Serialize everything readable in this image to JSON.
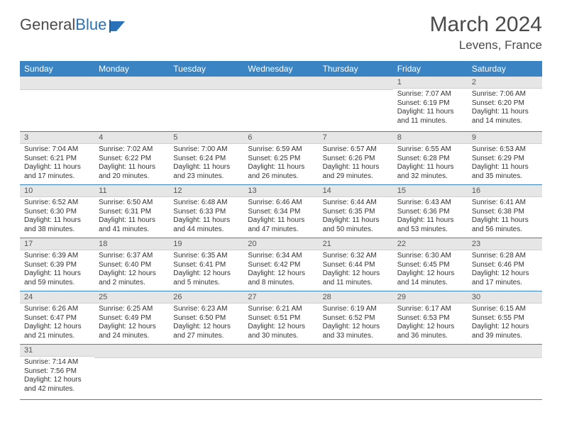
{
  "logo": {
    "part1": "General",
    "part2": "Blue"
  },
  "title": {
    "month": "March 2024",
    "location": "Levens, France"
  },
  "colors": {
    "header_bg": "#3b84c4",
    "header_text": "#ffffff",
    "daynum_bg": "#e6e6e6",
    "row_border": "#3b84c4",
    "text": "#333333",
    "logo_blue": "#2971b8"
  },
  "typography": {
    "title_fontsize": 30,
    "location_fontsize": 17,
    "header_fontsize": 12,
    "cell_fontsize": 10
  },
  "weekdays": [
    "Sunday",
    "Monday",
    "Tuesday",
    "Wednesday",
    "Thursday",
    "Friday",
    "Saturday"
  ],
  "weeks": [
    [
      null,
      null,
      null,
      null,
      null,
      {
        "n": "1",
        "sunrise": "Sunrise: 7:07 AM",
        "sunset": "Sunset: 6:19 PM",
        "daylight": "Daylight: 11 hours and 11 minutes."
      },
      {
        "n": "2",
        "sunrise": "Sunrise: 7:06 AM",
        "sunset": "Sunset: 6:20 PM",
        "daylight": "Daylight: 11 hours and 14 minutes."
      }
    ],
    [
      {
        "n": "3",
        "sunrise": "Sunrise: 7:04 AM",
        "sunset": "Sunset: 6:21 PM",
        "daylight": "Daylight: 11 hours and 17 minutes."
      },
      {
        "n": "4",
        "sunrise": "Sunrise: 7:02 AM",
        "sunset": "Sunset: 6:22 PM",
        "daylight": "Daylight: 11 hours and 20 minutes."
      },
      {
        "n": "5",
        "sunrise": "Sunrise: 7:00 AM",
        "sunset": "Sunset: 6:24 PM",
        "daylight": "Daylight: 11 hours and 23 minutes."
      },
      {
        "n": "6",
        "sunrise": "Sunrise: 6:59 AM",
        "sunset": "Sunset: 6:25 PM",
        "daylight": "Daylight: 11 hours and 26 minutes."
      },
      {
        "n": "7",
        "sunrise": "Sunrise: 6:57 AM",
        "sunset": "Sunset: 6:26 PM",
        "daylight": "Daylight: 11 hours and 29 minutes."
      },
      {
        "n": "8",
        "sunrise": "Sunrise: 6:55 AM",
        "sunset": "Sunset: 6:28 PM",
        "daylight": "Daylight: 11 hours and 32 minutes."
      },
      {
        "n": "9",
        "sunrise": "Sunrise: 6:53 AM",
        "sunset": "Sunset: 6:29 PM",
        "daylight": "Daylight: 11 hours and 35 minutes."
      }
    ],
    [
      {
        "n": "10",
        "sunrise": "Sunrise: 6:52 AM",
        "sunset": "Sunset: 6:30 PM",
        "daylight": "Daylight: 11 hours and 38 minutes."
      },
      {
        "n": "11",
        "sunrise": "Sunrise: 6:50 AM",
        "sunset": "Sunset: 6:31 PM",
        "daylight": "Daylight: 11 hours and 41 minutes."
      },
      {
        "n": "12",
        "sunrise": "Sunrise: 6:48 AM",
        "sunset": "Sunset: 6:33 PM",
        "daylight": "Daylight: 11 hours and 44 minutes."
      },
      {
        "n": "13",
        "sunrise": "Sunrise: 6:46 AM",
        "sunset": "Sunset: 6:34 PM",
        "daylight": "Daylight: 11 hours and 47 minutes."
      },
      {
        "n": "14",
        "sunrise": "Sunrise: 6:44 AM",
        "sunset": "Sunset: 6:35 PM",
        "daylight": "Daylight: 11 hours and 50 minutes."
      },
      {
        "n": "15",
        "sunrise": "Sunrise: 6:43 AM",
        "sunset": "Sunset: 6:36 PM",
        "daylight": "Daylight: 11 hours and 53 minutes."
      },
      {
        "n": "16",
        "sunrise": "Sunrise: 6:41 AM",
        "sunset": "Sunset: 6:38 PM",
        "daylight": "Daylight: 11 hours and 56 minutes."
      }
    ],
    [
      {
        "n": "17",
        "sunrise": "Sunrise: 6:39 AM",
        "sunset": "Sunset: 6:39 PM",
        "daylight": "Daylight: 11 hours and 59 minutes."
      },
      {
        "n": "18",
        "sunrise": "Sunrise: 6:37 AM",
        "sunset": "Sunset: 6:40 PM",
        "daylight": "Daylight: 12 hours and 2 minutes."
      },
      {
        "n": "19",
        "sunrise": "Sunrise: 6:35 AM",
        "sunset": "Sunset: 6:41 PM",
        "daylight": "Daylight: 12 hours and 5 minutes."
      },
      {
        "n": "20",
        "sunrise": "Sunrise: 6:34 AM",
        "sunset": "Sunset: 6:42 PM",
        "daylight": "Daylight: 12 hours and 8 minutes."
      },
      {
        "n": "21",
        "sunrise": "Sunrise: 6:32 AM",
        "sunset": "Sunset: 6:44 PM",
        "daylight": "Daylight: 12 hours and 11 minutes."
      },
      {
        "n": "22",
        "sunrise": "Sunrise: 6:30 AM",
        "sunset": "Sunset: 6:45 PM",
        "daylight": "Daylight: 12 hours and 14 minutes."
      },
      {
        "n": "23",
        "sunrise": "Sunrise: 6:28 AM",
        "sunset": "Sunset: 6:46 PM",
        "daylight": "Daylight: 12 hours and 17 minutes."
      }
    ],
    [
      {
        "n": "24",
        "sunrise": "Sunrise: 6:26 AM",
        "sunset": "Sunset: 6:47 PM",
        "daylight": "Daylight: 12 hours and 21 minutes."
      },
      {
        "n": "25",
        "sunrise": "Sunrise: 6:25 AM",
        "sunset": "Sunset: 6:49 PM",
        "daylight": "Daylight: 12 hours and 24 minutes."
      },
      {
        "n": "26",
        "sunrise": "Sunrise: 6:23 AM",
        "sunset": "Sunset: 6:50 PM",
        "daylight": "Daylight: 12 hours and 27 minutes."
      },
      {
        "n": "27",
        "sunrise": "Sunrise: 6:21 AM",
        "sunset": "Sunset: 6:51 PM",
        "daylight": "Daylight: 12 hours and 30 minutes."
      },
      {
        "n": "28",
        "sunrise": "Sunrise: 6:19 AM",
        "sunset": "Sunset: 6:52 PM",
        "daylight": "Daylight: 12 hours and 33 minutes."
      },
      {
        "n": "29",
        "sunrise": "Sunrise: 6:17 AM",
        "sunset": "Sunset: 6:53 PM",
        "daylight": "Daylight: 12 hours and 36 minutes."
      },
      {
        "n": "30",
        "sunrise": "Sunrise: 6:15 AM",
        "sunset": "Sunset: 6:55 PM",
        "daylight": "Daylight: 12 hours and 39 minutes."
      }
    ],
    [
      {
        "n": "31",
        "sunrise": "Sunrise: 7:14 AM",
        "sunset": "Sunset: 7:56 PM",
        "daylight": "Daylight: 12 hours and 42 minutes."
      },
      null,
      null,
      null,
      null,
      null,
      null
    ]
  ]
}
